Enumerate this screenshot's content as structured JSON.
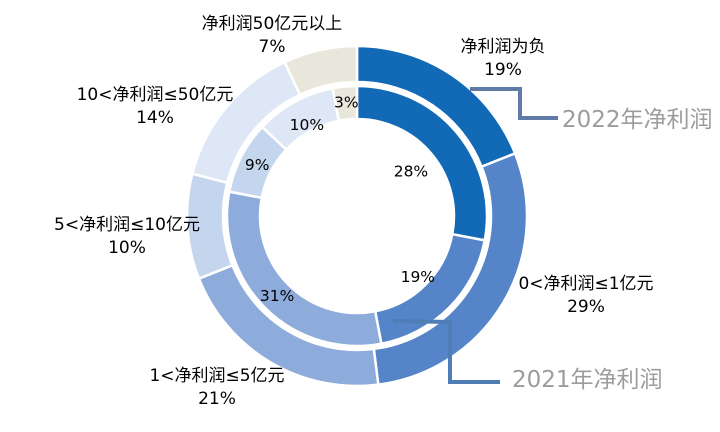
{
  "chart_data": {
    "type": "donut",
    "unit": "%",
    "categories": [
      "净利润为负",
      "0<净利润≤1亿元",
      "1<净利润≤5亿元",
      "5<净利润≤10亿元",
      "10<净利润≤50亿元",
      "净利润50亿元以上"
    ],
    "series": [
      {
        "name": "2022年净利润",
        "ring": "outer",
        "values": [
          19,
          29,
          21,
          10,
          14,
          7
        ]
      },
      {
        "name": "2021年净利润",
        "ring": "inner",
        "values": [
          28,
          19,
          31,
          9,
          10,
          3
        ]
      }
    ],
    "colors": [
      "#1269B5",
      "#5585C8",
      "#8DACDB",
      "#C4D5EE",
      "#DDE7F5",
      "#E9E7DC"
    ],
    "segment_border_color": "#FFFFFF",
    "start": "top",
    "direction": "clockwise",
    "legend": "none",
    "inner_label_color": "#000000"
  },
  "outer_labels": [
    {
      "name": "净利润为负",
      "pct": "19%"
    },
    {
      "name": "0<净利润≤1亿元",
      "pct": "29%"
    },
    {
      "name": "1<净利润≤5亿元",
      "pct": "21%"
    },
    {
      "name": "5<净利润≤10亿元",
      "pct": "10%"
    },
    {
      "name": "10<净利润≤50亿元",
      "pct": "14%"
    },
    {
      "name": "净利润50亿元以上",
      "pct": "7%"
    }
  ],
  "callouts": [
    {
      "text": "2022年净利润",
      "line_color": "#5F7BA6",
      "text_color": "#9C9C9C"
    },
    {
      "text": "2021年净利润",
      "line_color": "#4F7DB5",
      "text_color": "#9C9C9C"
    }
  ],
  "background": "#FFFFFF"
}
